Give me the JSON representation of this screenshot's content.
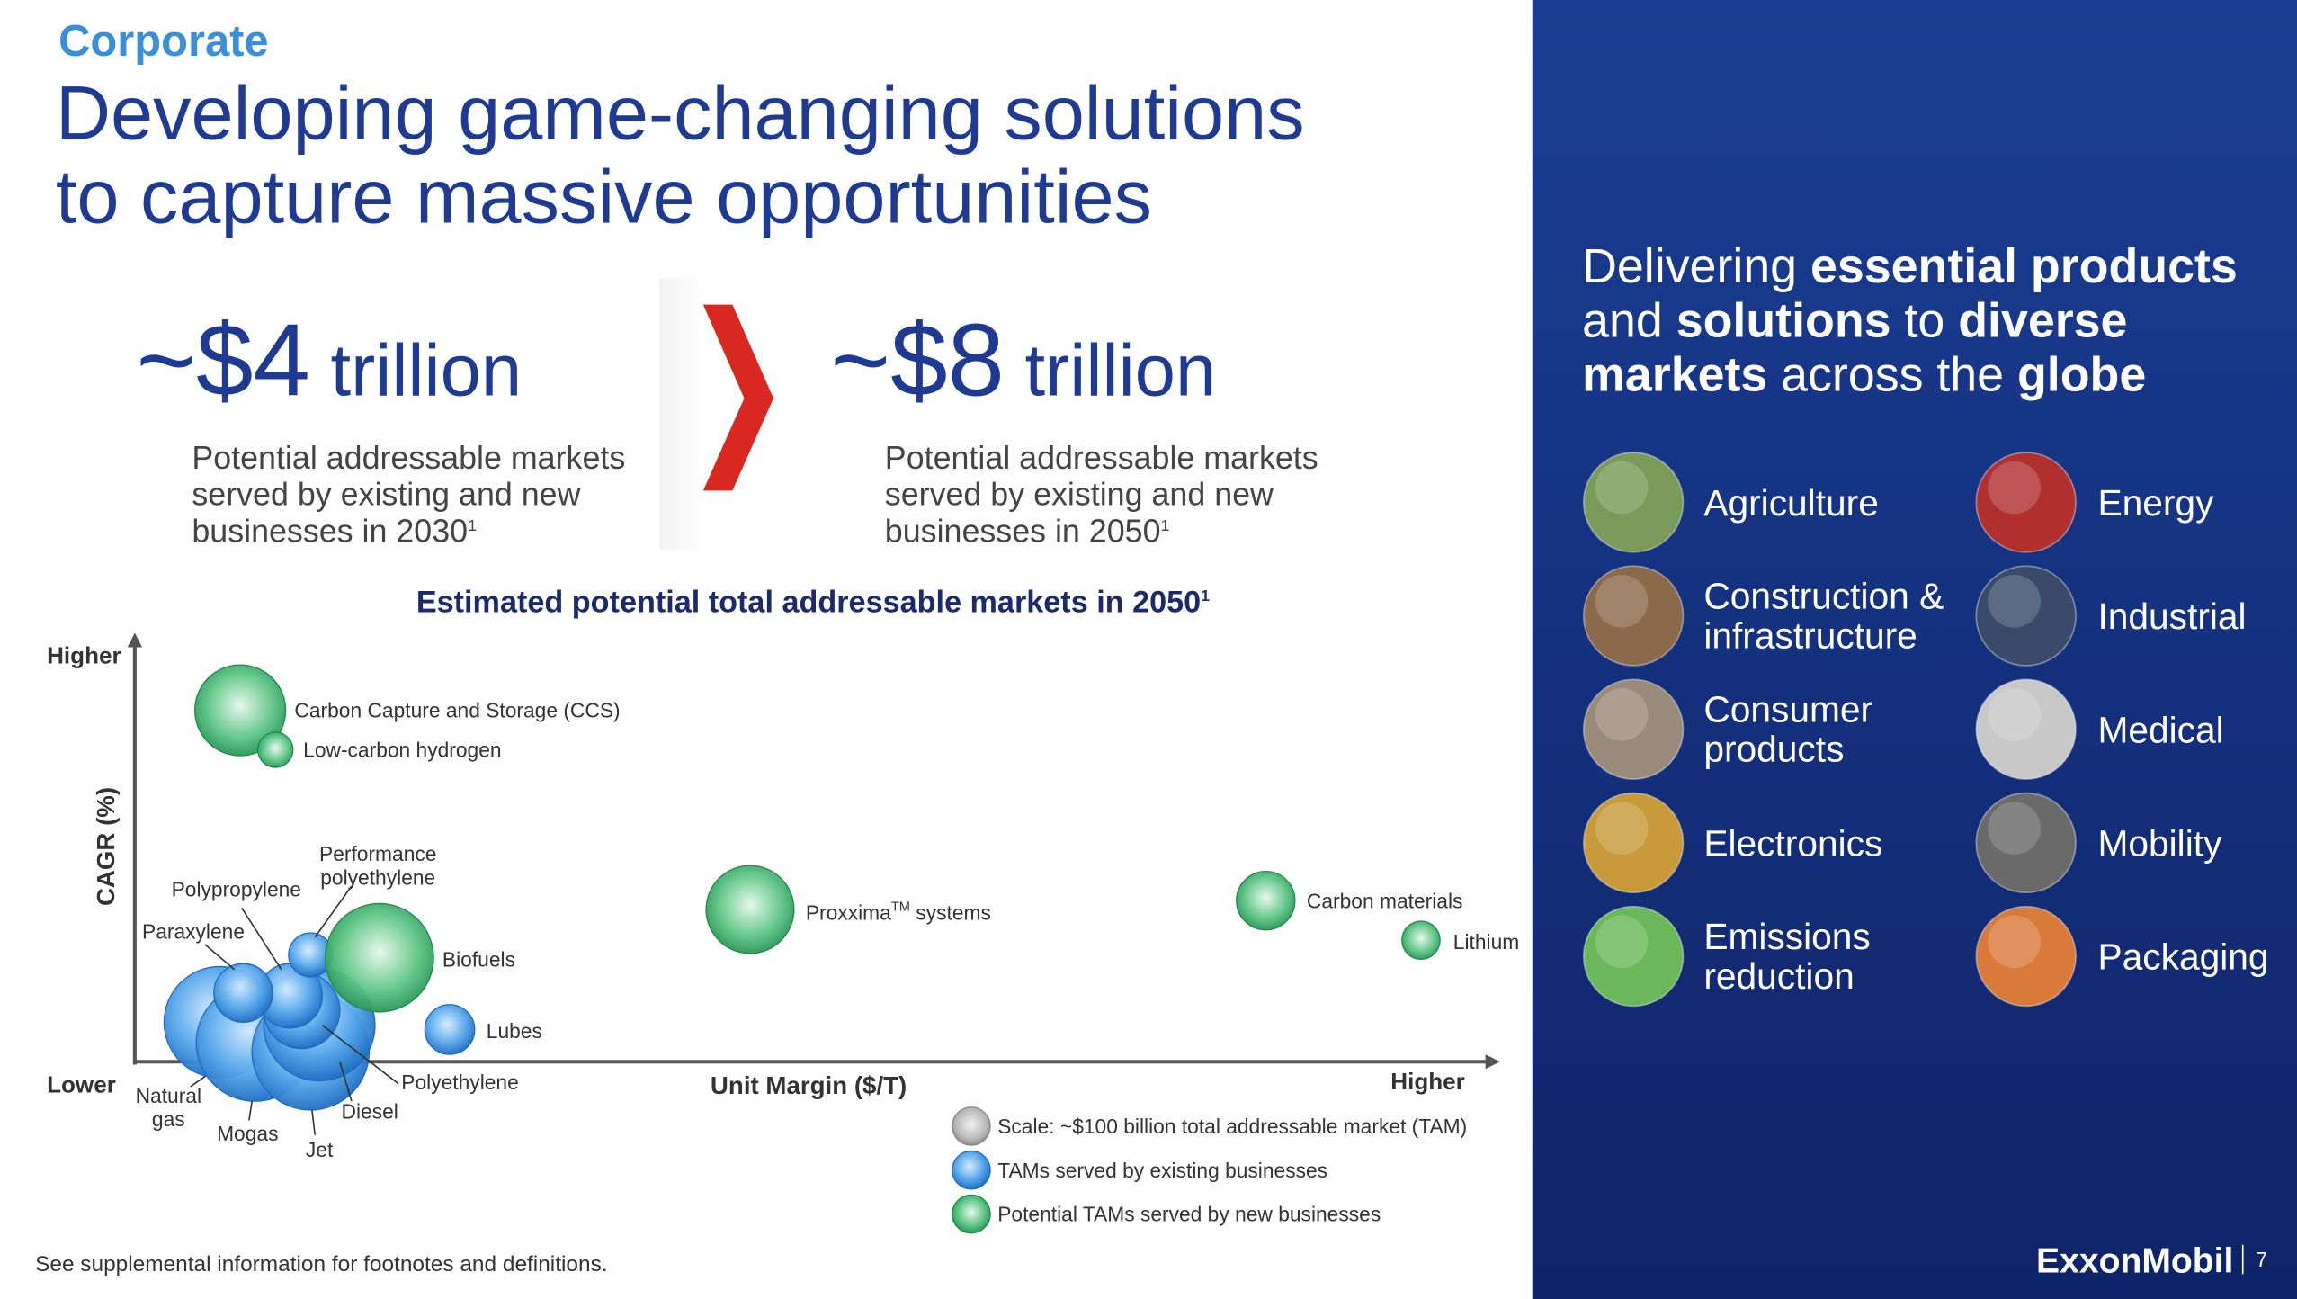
{
  "header": {
    "section": "Corporate",
    "title_lines": [
      "Developing game-changing solutions",
      "to capture massive opportunities"
    ]
  },
  "stats": [
    {
      "amount": "~$4",
      "unit": "trillion",
      "description_lines": [
        "Potential addressable markets",
        "served by existing and new",
        "businesses in 2030"
      ],
      "footnote": "1"
    },
    {
      "amount": "~$8",
      "unit": "trillion",
      "description_lines": [
        "Potential addressable markets",
        "served by existing and new",
        "businesses in 2050"
      ],
      "footnote": "1"
    }
  ],
  "chart": {
    "title": "Estimated potential total addressable markets in 2050",
    "title_footnote": "1",
    "y_label": "CAGR (%)",
    "y_high": "Higher",
    "y_low": "Lower",
    "x_label": "Unit Margin ($/T)",
    "x_high": "Higher",
    "bubbles": [
      {
        "label_parts": [
          "Natural",
          "gas"
        ],
        "group": "existing"
      },
      {
        "label_parts": [
          "Mogas"
        ],
        "group": "existing"
      },
      {
        "label_parts": [
          "Jet"
        ],
        "group": "existing"
      },
      {
        "label_parts": [
          "Diesel"
        ],
        "group": "existing"
      },
      {
        "label_parts": [
          "Polyethylene"
        ],
        "group": "existing"
      },
      {
        "label_parts": [
          "Polypropylene"
        ],
        "group": "existing"
      },
      {
        "label_parts": [
          "Paraxylene"
        ],
        "group": "existing"
      },
      {
        "label_parts": [
          "Performance",
          "polyethylene"
        ],
        "group": "existing"
      },
      {
        "label_parts": [
          "Lubes"
        ],
        "group": "existing"
      },
      {
        "label_parts": [
          "Biofuels"
        ],
        "group": "new"
      },
      {
        "label_parts": [
          "Carbon Capture and Storage (CCS)"
        ],
        "group": "new"
      },
      {
        "label_parts": [
          "Low-carbon hydrogen"
        ],
        "group": "new"
      },
      {
        "label_parts": [
          "Proxxima",
          "TM",
          " systems"
        ],
        "group": "new"
      },
      {
        "label_parts": [
          "Carbon materials"
        ],
        "group": "new"
      },
      {
        "label_parts": [
          "Lithium"
        ],
        "group": "new"
      }
    ],
    "legend": [
      {
        "label": "Scale: ~$100 billion total addressable market (TAM)",
        "group": "scale"
      },
      {
        "label": "TAMs served by existing businesses",
        "group": "existing"
      },
      {
        "label": "Potential TAMs served by new businesses",
        "group": "new"
      }
    ]
  },
  "side": {
    "headline_lines": [
      [
        {
          "text": "Delivering ",
          "bold": false
        },
        {
          "text": "essential products",
          "bold": true
        }
      ],
      [
        {
          "text": "and ",
          "bold": false
        },
        {
          "text": "solutions",
          "bold": true
        },
        {
          "text": " to ",
          "bold": false
        },
        {
          "text": "diverse",
          "bold": true
        }
      ],
      [
        {
          "text": "markets",
          "bold": true
        },
        {
          "text": " across the ",
          "bold": false
        },
        {
          "text": "globe",
          "bold": true
        }
      ]
    ],
    "markets": [
      [
        "Agriculture"
      ],
      [
        "Energy"
      ],
      [
        "Construction &",
        "infrastructure"
      ],
      [
        "Industrial"
      ],
      [
        "Consumer",
        "products"
      ],
      [
        "Medical"
      ],
      [
        "Electronics"
      ],
      [
        "Mobility"
      ],
      [
        "Emissions",
        "reduction"
      ],
      [
        "Packaging"
      ]
    ]
  },
  "footer": {
    "note": "See supplemental information for footnotes and definitions.",
    "logo": "ExxonMobil",
    "page": "7"
  }
}
